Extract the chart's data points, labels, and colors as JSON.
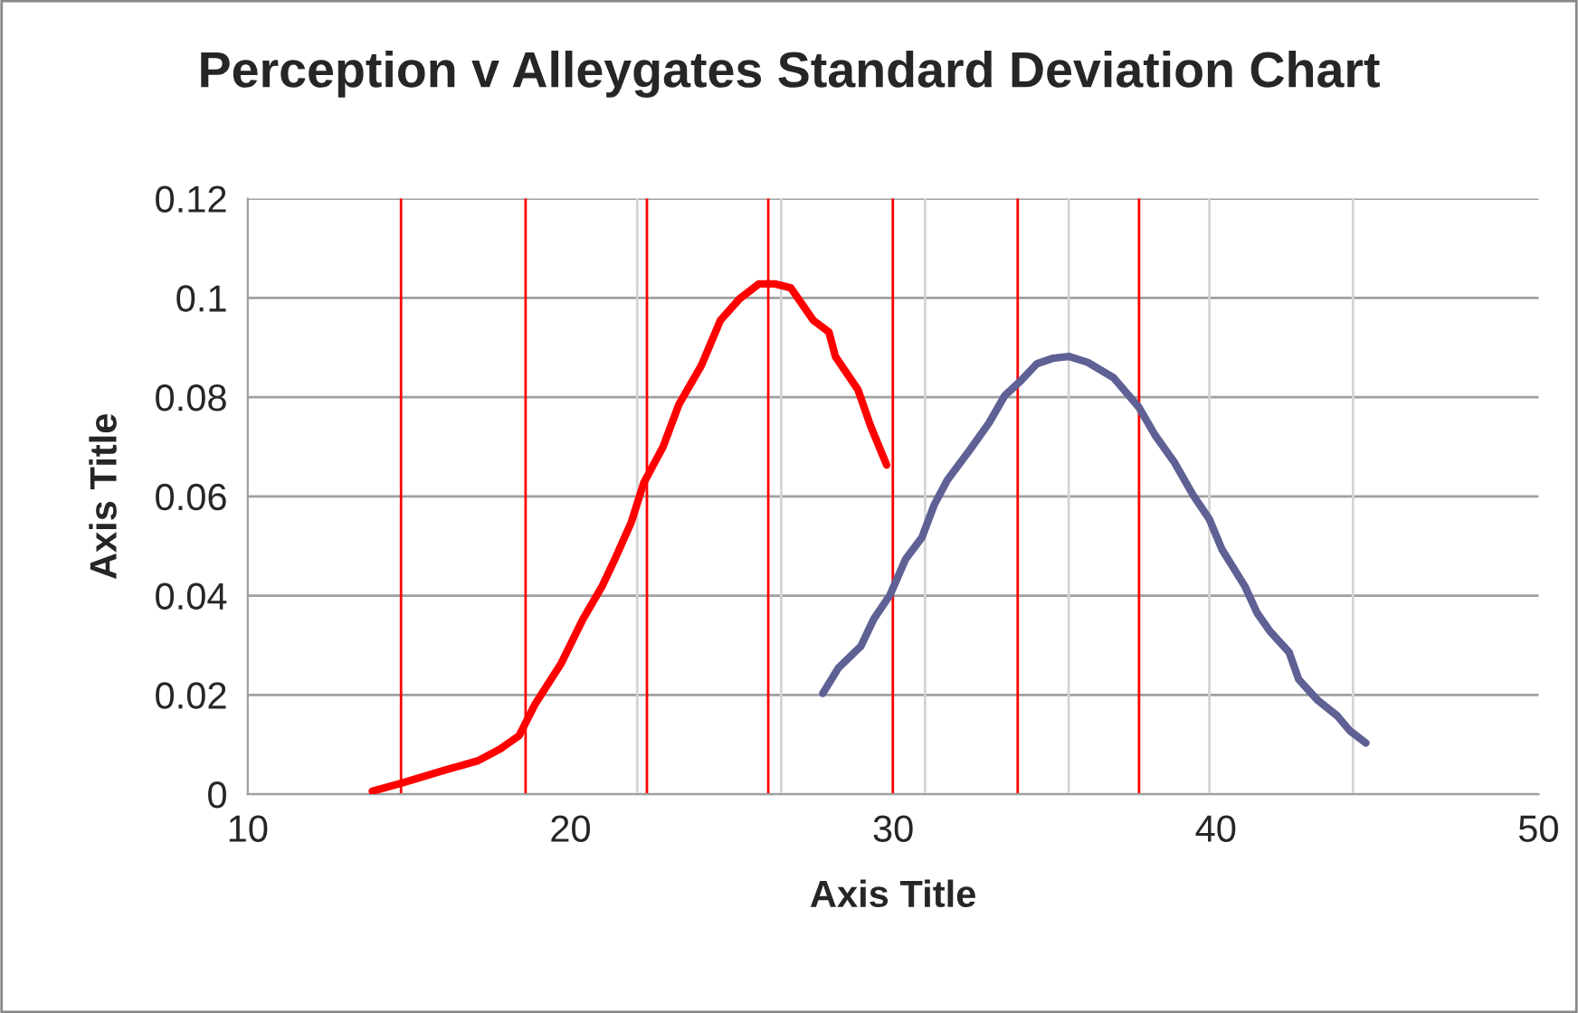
{
  "chart_data": {
    "type": "line",
    "title": "Perception v Alleygates Standard Deviation Chart",
    "xlabel": "Axis Title",
    "ylabel": "Axis Title",
    "xlim": [
      10,
      50
    ],
    "xticks": [
      10,
      20,
      30,
      40,
      50
    ],
    "ylim": [
      0,
      0.12
    ],
    "yticks": [
      0,
      0.02,
      0.04,
      0.06,
      0.08,
      0.1,
      0.12
    ],
    "grid": "y",
    "marker": "none",
    "line_style": "solid",
    "series": [
      {
        "color": "#ff0000",
        "x": [
          13.86,
          14.75,
          16.13,
          17.12,
          17.82,
          18.41,
          18.91,
          19.7,
          20.39,
          20.99,
          21.38,
          21.88,
          22.27,
          22.87,
          23.36,
          24.06,
          24.65,
          25.24,
          25.84,
          26.33,
          26.83,
          27.52,
          28.01,
          28.21,
          28.91,
          29.3,
          29.8
        ],
        "values": [
          0.0006,
          0.0022,
          0.0049,
          0.0067,
          0.0091,
          0.0118,
          0.0182,
          0.0262,
          0.0353,
          0.042,
          0.0474,
          0.0547,
          0.0627,
          0.07,
          0.0785,
          0.0864,
          0.0955,
          0.0998,
          0.1028,
          0.1028,
          0.102,
          0.0955,
          0.0931,
          0.0882,
          0.0815,
          0.0742,
          0.0663
        ]
      },
      {
        "color": "#5f6094",
        "x": [
          27.82,
          28.31,
          29.0,
          29.4,
          29.9,
          30.39,
          30.89,
          31.28,
          31.68,
          32.37,
          32.97,
          33.46,
          33.96,
          34.45,
          34.94,
          35.44,
          36.03,
          36.83,
          37.62,
          38.11,
          38.71,
          39.3,
          39.8,
          40.19,
          40.89,
          41.28,
          41.68,
          42.27,
          42.57,
          43.16,
          43.76,
          44.15,
          44.65
        ],
        "values": [
          0.0203,
          0.0255,
          0.0298,
          0.0353,
          0.0401,
          0.0474,
          0.0517,
          0.0584,
          0.0633,
          0.0693,
          0.0748,
          0.0803,
          0.0833,
          0.0867,
          0.0878,
          0.0882,
          0.087,
          0.0839,
          0.0779,
          0.0724,
          0.0669,
          0.0602,
          0.0554,
          0.0493,
          0.042,
          0.0365,
          0.0328,
          0.0286,
          0.0231,
          0.0189,
          0.0158,
          0.0128,
          0.0103
        ]
      }
    ],
    "ref_lines": [
      {
        "axis": "x",
        "value": 22.07,
        "color": "#d4d4d4"
      },
      {
        "axis": "x",
        "value": 26.53,
        "color": "#d4d4d4"
      },
      {
        "axis": "x",
        "value": 30.99,
        "color": "#d4d4d4"
      },
      {
        "axis": "x",
        "value": 35.44,
        "color": "#d4d4d4"
      },
      {
        "axis": "x",
        "value": 39.8,
        "color": "#d4d4d4"
      },
      {
        "axis": "x",
        "value": 44.25,
        "color": "#d4d4d4"
      },
      {
        "axis": "x",
        "value": 14.75,
        "color": "#ff0000"
      },
      {
        "axis": "x",
        "value": 18.61,
        "color": "#ff0000"
      },
      {
        "axis": "x",
        "value": 22.37,
        "color": "#ff0000"
      },
      {
        "axis": "x",
        "value": 26.13,
        "color": "#ff0000"
      },
      {
        "axis": "x",
        "value": 29.99,
        "color": "#ff0000"
      },
      {
        "axis": "x",
        "value": 33.86,
        "color": "#ff0000"
      },
      {
        "axis": "x",
        "value": 37.62,
        "color": "#ff0000"
      }
    ]
  }
}
